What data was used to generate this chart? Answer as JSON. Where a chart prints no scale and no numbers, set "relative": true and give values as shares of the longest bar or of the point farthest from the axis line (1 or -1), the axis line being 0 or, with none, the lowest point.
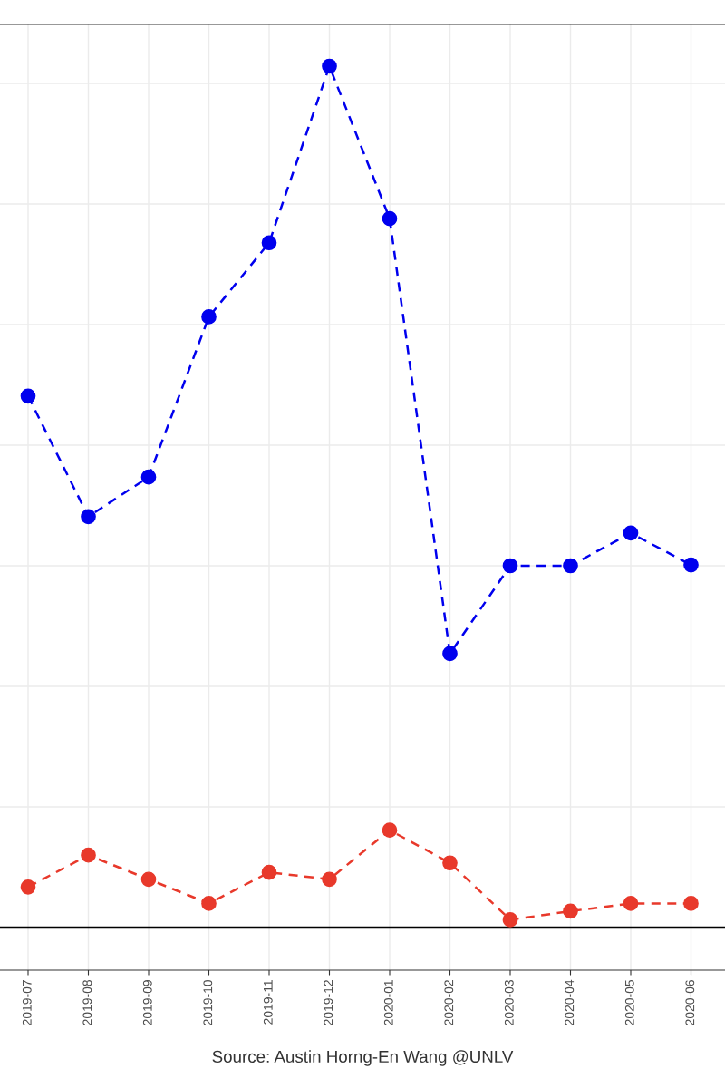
{
  "chart_data": {
    "type": "line",
    "relative": true,
    "grid": true,
    "legend": false,
    "marker": "circle",
    "line_style": "dashed",
    "categories": [
      "2019-07",
      "2019-08",
      "2019-09",
      "2019-10",
      "2019-11",
      "2019-12",
      "2020-01",
      "2020-02",
      "2020-03",
      "2020-04",
      "2020-05",
      "2020-06"
    ],
    "series": [
      {
        "color": "#0000ee",
        "values": [
          0.617,
          0.477,
          0.523,
          0.709,
          0.795,
          1,
          0.823,
          0.318,
          0.42,
          0.42,
          0.458,
          0.421
        ]
      },
      {
        "color": "#e8392b",
        "values": [
          0.047,
          0.084,
          0.056,
          0.028,
          0.064,
          0.056,
          0.113,
          0.075,
          0.009,
          0.019,
          0.028,
          0.028
        ]
      }
    ],
    "annotations": [
      "Source: Austin Horng-En Wang @UNLV"
    ]
  }
}
